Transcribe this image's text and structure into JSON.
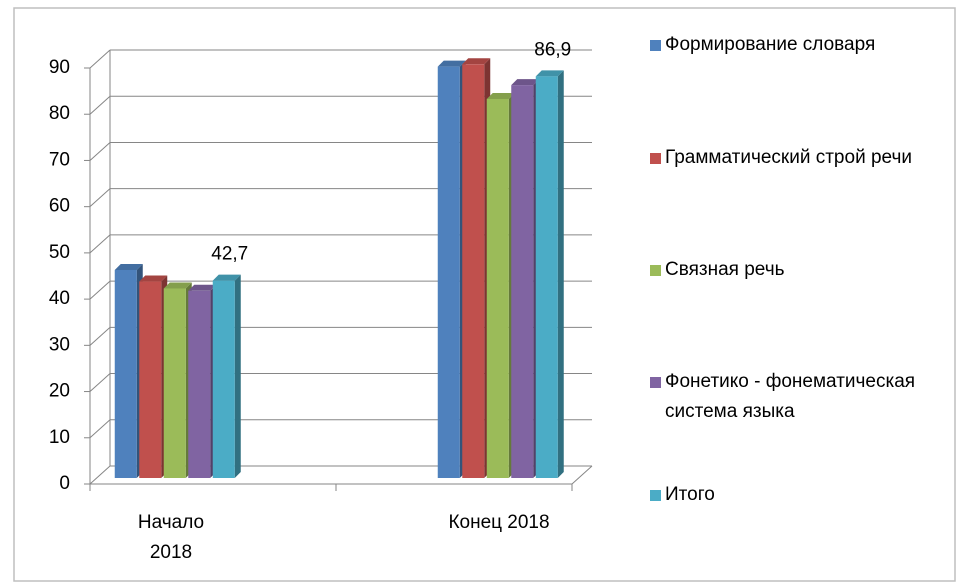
{
  "chart_data": {
    "type": "bar3d",
    "categories": [
      "Начало 2018",
      "Конец 2018"
    ],
    "series": [
      {
        "name": "Формирование словаря",
        "color": "#4F81BD",
        "values": [
          45,
          89
        ]
      },
      {
        "name": "Грамматический строй речи",
        "color": "#C0504D",
        "values": [
          42.5,
          89.5
        ]
      },
      {
        "name": "Связная речь",
        "color": "#9BBB59",
        "values": [
          41,
          82
        ]
      },
      {
        "name": "Фонетико - фонематическая система языка",
        "color": "#8064A2",
        "values": [
          40.5,
          85
        ]
      },
      {
        "name": "Итого",
        "color": "#4BACC6",
        "values": [
          42.7,
          86.9
        ],
        "value_labels": [
          "42,7",
          "86,9"
        ]
      }
    ],
    "ylim": [
      0,
      90
    ],
    "yticks": [
      0,
      10,
      20,
      30,
      40,
      50,
      60,
      70,
      80,
      90
    ],
    "grid": true,
    "legend": "right"
  }
}
